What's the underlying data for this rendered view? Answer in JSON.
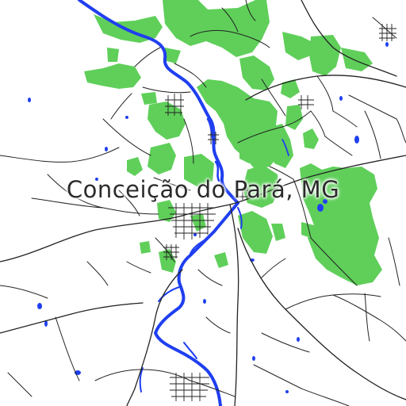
{
  "map": {
    "title": "Conceição do Pará, MG",
    "colors": {
      "background": "#ffffff",
      "vegetation": "#5fcf5a",
      "water": "#1f3ff0",
      "road": "#222222",
      "label": "#2b2b2b"
    }
  }
}
